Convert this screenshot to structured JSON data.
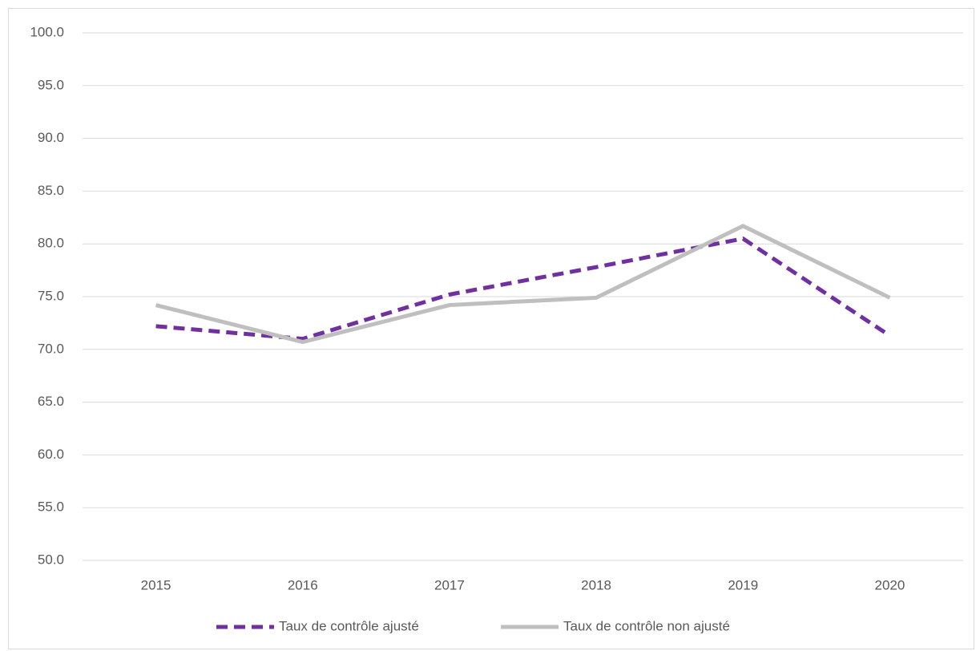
{
  "chart_data": {
    "type": "line",
    "categories": [
      "2015",
      "2016",
      "2017",
      "2018",
      "2019",
      "2020"
    ],
    "series": [
      {
        "name": "Taux de contrôle ajusté",
        "color": "#7030a0",
        "dashed": true,
        "values": [
          72.2,
          71.0,
          75.2,
          77.8,
          80.5,
          71.3
        ]
      },
      {
        "name": "Taux de contrôle non ajusté",
        "color": "#bfbfbf",
        "dashed": false,
        "values": [
          74.2,
          70.7,
          74.2,
          74.9,
          81.7,
          74.9
        ]
      }
    ],
    "ylim": [
      50,
      100
    ],
    "yticks": [
      {
        "value": 50,
        "label": "50.0"
      },
      {
        "value": 55,
        "label": "55.0"
      },
      {
        "value": 60,
        "label": "60.0"
      },
      {
        "value": 65,
        "label": "65.0"
      },
      {
        "value": 70,
        "label": "70.0"
      },
      {
        "value": 75,
        "label": "75.0"
      },
      {
        "value": 80,
        "label": "80.0"
      },
      {
        "value": 85,
        "label": "85.0"
      },
      {
        "value": 90,
        "label": "90.0"
      },
      {
        "value": 95,
        "label": "95.0"
      },
      {
        "value": 100,
        "label": "100.0"
      }
    ],
    "grid": true,
    "legend": "bottom"
  }
}
